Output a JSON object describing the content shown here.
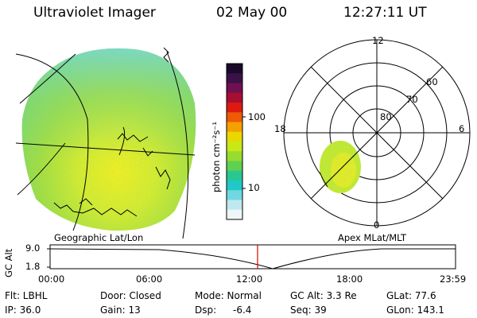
{
  "header": {
    "title": "Ultraviolet Imager",
    "date": "02 May 00",
    "time": "12:27:11 UT"
  },
  "colorbar": {
    "unit_label": "photon cm⁻²s⁻¹",
    "ticks": [
      "100",
      "10"
    ],
    "colors": [
      "#1a0a2a",
      "#3a1248",
      "#701050",
      "#a80e30",
      "#dc1a10",
      "#ee5a08",
      "#f4a000",
      "#e8d800",
      "#c8e818",
      "#98dc30",
      "#60d050",
      "#28c890",
      "#20c8c8",
      "#70d8e0",
      "#c0e8f0",
      "#eef6f8"
    ]
  },
  "left_panel": {
    "caption": "Geographic Lat/Lon"
  },
  "right_panel": {
    "caption": "Apex MLat/MLT",
    "mlt_labels": {
      "top": "12",
      "left": "18",
      "right": "6",
      "bottom": "0"
    },
    "lat_labels": [
      "60",
      "70",
      "80"
    ]
  },
  "altitude_plot": {
    "ylabel": "GC Alt",
    "yticks": [
      "9.0",
      "1.8"
    ],
    "xticks": [
      "00:00",
      "06:00",
      "12:00",
      "18:00",
      "23:59"
    ],
    "current_marker_color": "#e00000"
  },
  "info": {
    "flt": "Flt: LBHL",
    "ip": "IP: 36.0",
    "door": "Door: Closed",
    "gain": "Gain: 13",
    "mode": "Mode: Normal",
    "dsp_label": "Dsp:",
    "dsp_value": "-6.4",
    "gc_alt": "GC Alt: 3.3 Re",
    "seq": "Seq: 39",
    "glat": "GLat: 77.6",
    "glon": "GLon: 143.1"
  }
}
